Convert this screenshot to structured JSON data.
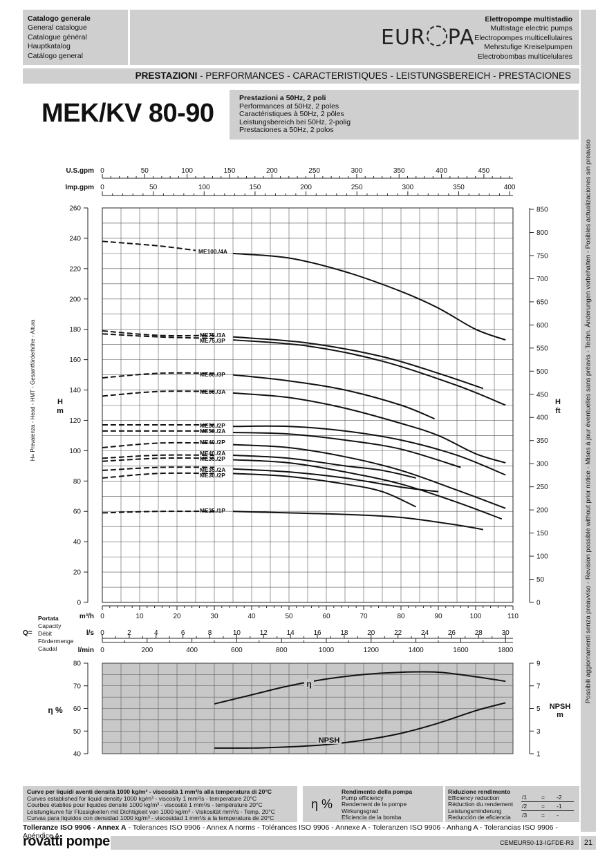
{
  "header": {
    "left_lines": [
      "Catalogo generale",
      "General catalogue",
      "Catalogue général",
      "Hauptkatalog",
      "Catálogo general"
    ],
    "right_lines": [
      "Elettropompe multistadio",
      "Multistage electric pumps",
      "Electropompes multicellulaires",
      "Mehrstufige Kreiselpumpen",
      "Electrobombas multicelulares"
    ],
    "logo": "EUROPA"
  },
  "banner": {
    "bold": "PRESTAZIONI",
    "rest": " - PERFORMANCES - CARACTERISTIQUES - LEISTUNGSBEREICH - PRESTACIONES"
  },
  "title": "MEK/KV 80-90",
  "subtitle_lines": [
    "Prestazioni a 50Hz, 2 poli",
    "Performances at 50Hz, 2 poles",
    "Caractéristiques à 50Hz, 2 pôles",
    "Leistungsbereich bei 50Hz, 2-polig",
    "Prestaciones a 50Hz, 2 polos"
  ],
  "sidebar_text": "Possibili aggiornamenti senza preavviso - Revision possible without prior notice - Mises à jour éventuelles sans préavis - Techn. Änderungen vorbehalten - Posibles actualizaciones sin preaviso",
  "footer": {
    "curve_lines": [
      "Curve per liquidi aventi densità 1000 kg/m³ - viscosità 1 mm²/s alla temperatura di 20°C",
      "Curves established for liquid density 1000 kg/m³ - viscosity 1 mm²/s - temperature 20°C",
      "Courbes établies pour liquides densité 1000 kg/m³ - viscosité 1 mm²/s - température 20°C",
      "Leistungkurve für Flüssigkeiten mit Dichtigkeit von 1000 kg/m³ - Viskosität mm²/s - Temp. 20°C",
      "Curvas para líquidos con densidad 1000 kg/m³ - viscosidad 1 mm²/s a la temperatura de 20°C"
    ],
    "eta_symbol": "η %",
    "eff_lines": [
      "Rendimento della pompa",
      "Pump efficiency",
      "Rendement de la pompe",
      "Wirkungsgrad",
      "Eficiencia de la bomba"
    ],
    "red_lines": [
      "Riduzione rendimento",
      "Efficiency reduction",
      "Réduction du rendement",
      "Leistungsminderung",
      "Reducción de eficiencia"
    ],
    "red_table": [
      [
        "/1",
        "=",
        "-2"
      ],
      [
        "/2",
        "=",
        "-1"
      ],
      [
        "/3",
        "=",
        "-"
      ]
    ],
    "tolerance": {
      "bold": "Tolleranze ISO 9906 - Annex A",
      "rest": " - Tolerances ISO 9906 - Annex A norms - Tolérances ISO 9906 - Annexe A - Toleranzen ISO 9906 - Anhang A - Tolerancias ISO 9906 - Apéndice A"
    },
    "brand": "rovatti pompe",
    "code": "CEMEUR50-13-IGFDE-R3",
    "page": "21"
  },
  "chart_data": [
    {
      "type": "line",
      "name_labels": {
        "y_left_unit": "H\nm",
        "y_right_unit": "H\nft",
        "y_side_label": "H= Prevalenza - Head - HMT - Gesamtförderhöhe - Altura"
      },
      "x_unit": "m³/h",
      "xlim": [
        0,
        110
      ],
      "ylim": [
        0,
        260
      ],
      "y_ticks": [
        0,
        20,
        40,
        60,
        80,
        100,
        120,
        140,
        160,
        180,
        200,
        220,
        240,
        260
      ],
      "x_ticks": [
        0,
        10,
        20,
        30,
        40,
        50,
        60,
        70,
        80,
        90,
        100,
        110
      ],
      "y_right_ticks_ft": [
        0,
        50,
        100,
        150,
        200,
        250,
        300,
        350,
        400,
        450,
        500,
        550,
        600,
        650,
        700,
        750,
        800,
        850
      ],
      "top_axes": [
        {
          "label": "U.S.gpm",
          "ticks": [
            0,
            50,
            100,
            150,
            200,
            250,
            300,
            350,
            400,
            450
          ],
          "factor": 4.4029
        },
        {
          "label": "Imp.gpm",
          "ticks": [
            0,
            50,
            100,
            150,
            200,
            250,
            300,
            350,
            400
          ],
          "factor": 3.6662
        }
      ],
      "bottom_axes": [
        {
          "label": "l/s",
          "ticks": [
            0,
            2,
            4,
            6,
            8,
            10,
            12,
            14,
            16,
            18,
            20,
            22,
            24,
            26,
            28,
            30
          ],
          "factor": 0.27778
        },
        {
          "label": "l/min",
          "ticks": [
            0,
            200,
            400,
            600,
            800,
            1000,
            1200,
            1400,
            1600,
            1800
          ],
          "factor": 16.6667
        }
      ],
      "flow_label_lines": [
        "Portata",
        "Capacity",
        "Débit",
        "Fördermenge",
        "Caudal"
      ],
      "flow_symbol": "Q=",
      "grid": true,
      "series": [
        {
          "name": "ME100./4A",
          "dashed": [
            [
              0,
              238
            ],
            [
              15,
              235
            ],
            [
              25,
              232
            ]
          ],
          "solid": [
            [
              35,
              230
            ],
            [
              50,
              227
            ],
            [
              65,
              218
            ],
            [
              80,
              205
            ],
            [
              90,
              194
            ],
            [
              100,
              180
            ],
            [
              108,
              173
            ]
          ]
        },
        {
          "name": "ME75./3A",
          "dashed": [
            [
              0,
              179
            ],
            [
              15,
              176
            ],
            [
              30,
              176
            ]
          ],
          "solid": [
            [
              35,
              175
            ],
            [
              55,
              171
            ],
            [
              75,
              162
            ],
            [
              90,
              151
            ],
            [
              102,
              141
            ]
          ]
        },
        {
          "name": "ME75./3P",
          "dashed": [
            [
              0,
              177
            ],
            [
              15,
              175
            ],
            [
              30,
              174
            ]
          ],
          "solid": [
            [
              35,
              173
            ],
            [
              55,
              169
            ],
            [
              75,
              159
            ],
            [
              95,
              143
            ],
            [
              108,
              130
            ]
          ]
        },
        {
          "name": "ME60./3P",
          "dashed": [
            [
              0,
              148
            ],
            [
              15,
              151
            ],
            [
              30,
              151
            ]
          ],
          "solid": [
            [
              35,
              150
            ],
            [
              50,
              146
            ],
            [
              65,
              140
            ],
            [
              80,
              130
            ],
            [
              89,
              121
            ]
          ]
        },
        {
          "name": "ME60./3A",
          "dashed": [
            [
              0,
              136
            ],
            [
              15,
              139
            ],
            [
              30,
              139
            ]
          ],
          "solid": [
            [
              35,
              138
            ],
            [
              50,
              135
            ],
            [
              65,
              128
            ],
            [
              80,
              118
            ],
            [
              90,
              110
            ],
            [
              100,
              98
            ],
            [
              108,
              92
            ]
          ]
        },
        {
          "name": "ME50./2P",
          "dashed": [
            [
              0,
              117
            ],
            [
              15,
              117
            ],
            [
              30,
              117
            ]
          ],
          "solid": [
            [
              35,
              116
            ],
            [
              50,
              116
            ],
            [
              65,
              113
            ],
            [
              80,
              107
            ],
            [
              95,
              97
            ],
            [
              108,
              84
            ]
          ]
        },
        {
          "name": "ME50./2A",
          "dashed": [
            [
              0,
              113
            ],
            [
              15,
              113
            ],
            [
              30,
              113
            ]
          ],
          "solid": [
            [
              35,
              112
            ],
            [
              50,
              111
            ],
            [
              65,
              107
            ],
            [
              80,
              101
            ],
            [
              96,
              89
            ]
          ]
        },
        {
          "name": "ME40./2P",
          "dashed": [
            [
              0,
              102
            ],
            [
              15,
              105
            ],
            [
              30,
              105
            ]
          ],
          "solid": [
            [
              35,
              104
            ],
            [
              50,
              102
            ],
            [
              65,
              96
            ],
            [
              80,
              87
            ],
            [
              95,
              74
            ],
            [
              108,
              62
            ]
          ]
        },
        {
          "name": "ME40./2A",
          "dashed": [
            [
              0,
              95
            ],
            [
              15,
              97
            ],
            [
              30,
              97
            ]
          ],
          "solid": [
            [
              35,
              97
            ],
            [
              50,
              95
            ],
            [
              65,
              90
            ],
            [
              75,
              87
            ],
            [
              84,
              82
            ]
          ]
        },
        {
          "name": "ME35./2P",
          "dashed": [
            [
              0,
              93
            ],
            [
              15,
              95
            ],
            [
              30,
              95
            ]
          ],
          "solid": [
            [
              35,
              94
            ],
            [
              50,
              92
            ],
            [
              65,
              86
            ],
            [
              80,
              78
            ],
            [
              95,
              66
            ],
            [
              107,
              55
            ]
          ]
        },
        {
          "name": "ME35./2A",
          "dashed": [
            [
              0,
              87
            ],
            [
              15,
              89
            ],
            [
              30,
              89
            ]
          ],
          "solid": [
            [
              35,
              88
            ],
            [
              50,
              86
            ],
            [
              65,
              82
            ],
            [
              80,
              76
            ],
            [
              90,
              73
            ]
          ]
        },
        {
          "name": "ME30./2P",
          "dashed": [
            [
              0,
              82
            ],
            [
              15,
              85
            ],
            [
              30,
              85
            ]
          ],
          "solid": [
            [
              35,
              85
            ],
            [
              50,
              83
            ],
            [
              65,
              78
            ],
            [
              75,
              73
            ],
            [
              84,
              63
            ]
          ]
        },
        {
          "name": "ME25./1P",
          "dashed": [
            [
              0,
              59
            ],
            [
              15,
              60
            ],
            [
              30,
              60
            ]
          ],
          "solid": [
            [
              35,
              60
            ],
            [
              50,
              59
            ],
            [
              65,
              58
            ],
            [
              80,
              56
            ],
            [
              95,
              51
            ],
            [
              102,
              48
            ]
          ]
        }
      ]
    },
    {
      "type": "line",
      "y_left_unit": "η %",
      "y_right_unit": "NPSH\nm",
      "xlim": [
        0,
        110
      ],
      "ylim": [
        40,
        80
      ],
      "y_ticks": [
        40,
        50,
        60,
        70,
        80
      ],
      "y_right_ticks": [
        1,
        3,
        5,
        7,
        9
      ],
      "y_right_lim": [
        1,
        9
      ],
      "grid": true,
      "series": [
        {
          "name": "η",
          "axis": "left",
          "points": [
            [
              30,
              62
            ],
            [
              40,
              66
            ],
            [
              50,
              70
            ],
            [
              60,
              73
            ],
            [
              70,
              75
            ],
            [
              80,
              76
            ],
            [
              90,
              76
            ],
            [
              100,
              74
            ],
            [
              108,
              72
            ]
          ]
        },
        {
          "name": "NPSH",
          "axis": "right",
          "points": [
            [
              30,
              1.5
            ],
            [
              40,
              1.5
            ],
            [
              50,
              1.6
            ],
            [
              60,
              1.8
            ],
            [
              70,
              2.2
            ],
            [
              80,
              2.8
            ],
            [
              90,
              3.7
            ],
            [
              100,
              4.8
            ],
            [
              108,
              5.5
            ]
          ]
        }
      ]
    }
  ]
}
